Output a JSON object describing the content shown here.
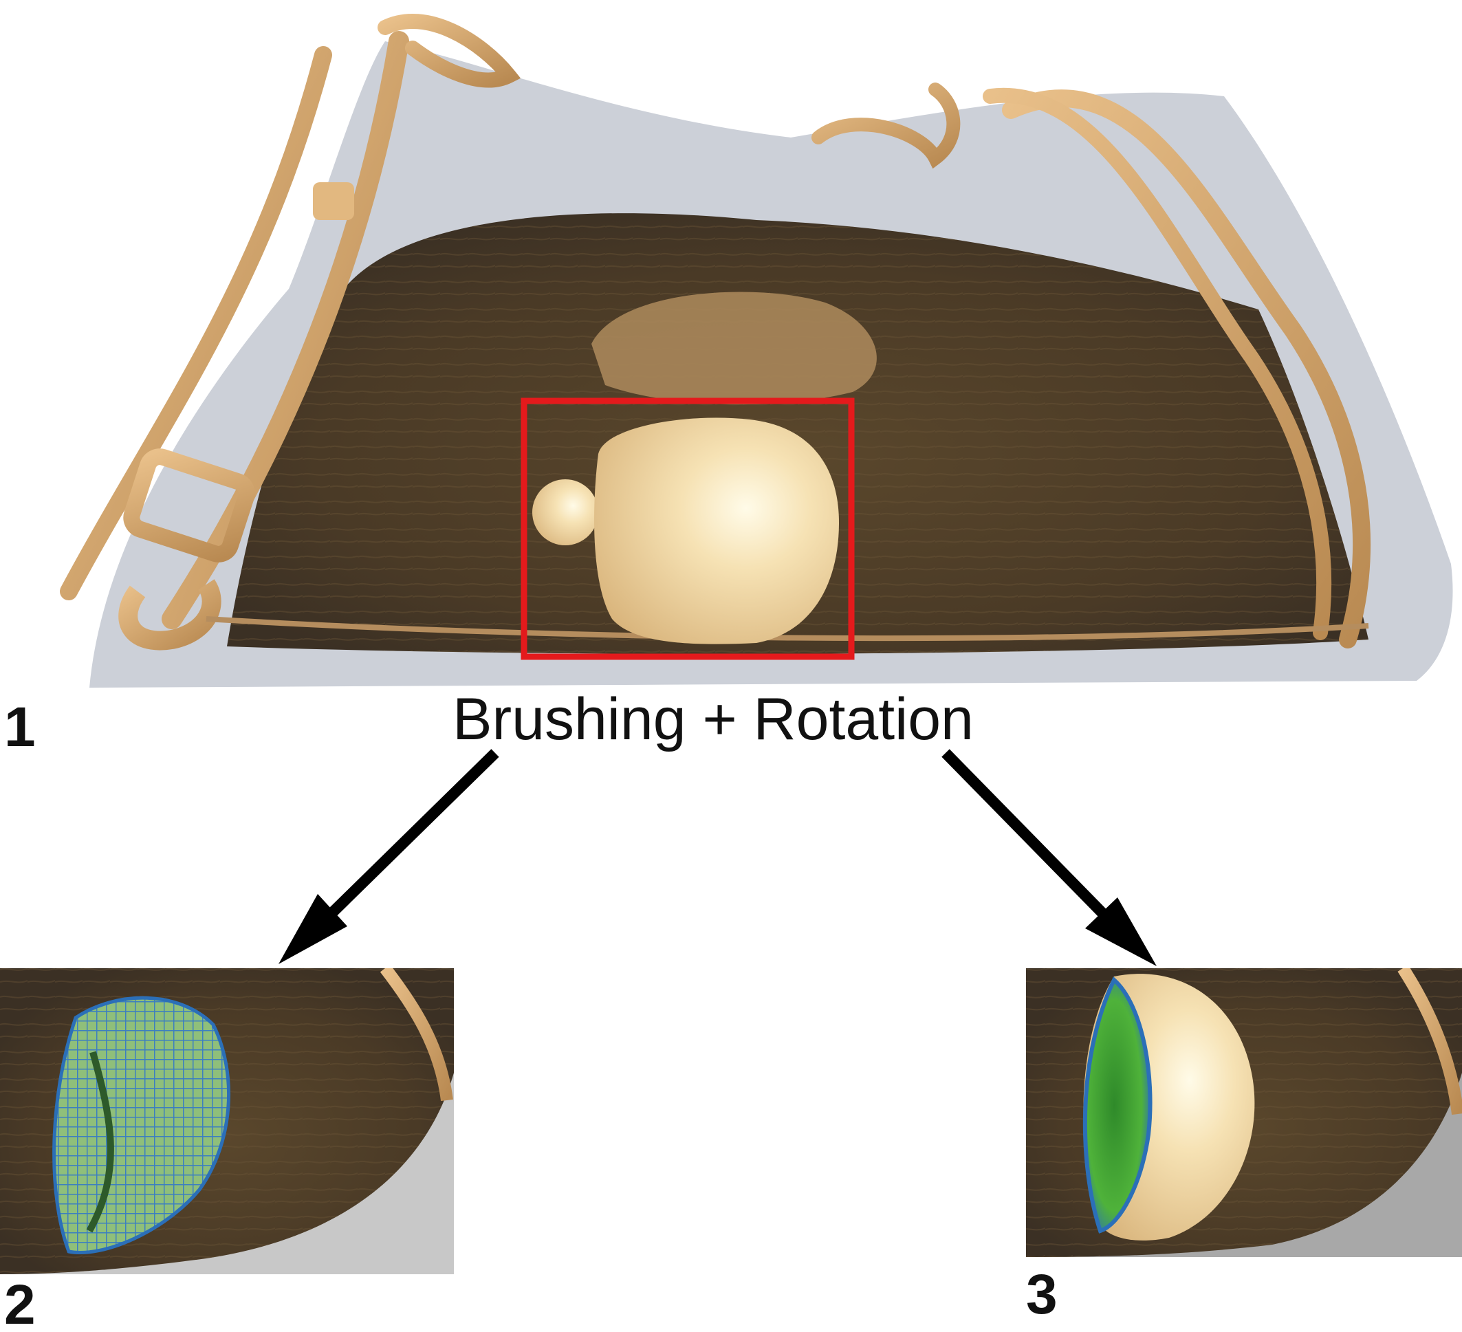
{
  "caption": "Brushing + Rotation",
  "panels": [
    {
      "label": "1",
      "description": "full volume view with brush selection"
    },
    {
      "label": "2",
      "description": "rotated view of brushed region"
    },
    {
      "label": "3",
      "description": "rotated view of brushed region"
    }
  ],
  "colors": {
    "selection_box": "#e41a1c",
    "arrow": "#000000",
    "object_surface": "#f2d8a0",
    "strap": "#d2a265",
    "bag_dark": "#4a3a26",
    "bag_mesh": "#8d97a8",
    "selection_green": "#5db43c",
    "selection_blue": "#2b6fb8"
  }
}
